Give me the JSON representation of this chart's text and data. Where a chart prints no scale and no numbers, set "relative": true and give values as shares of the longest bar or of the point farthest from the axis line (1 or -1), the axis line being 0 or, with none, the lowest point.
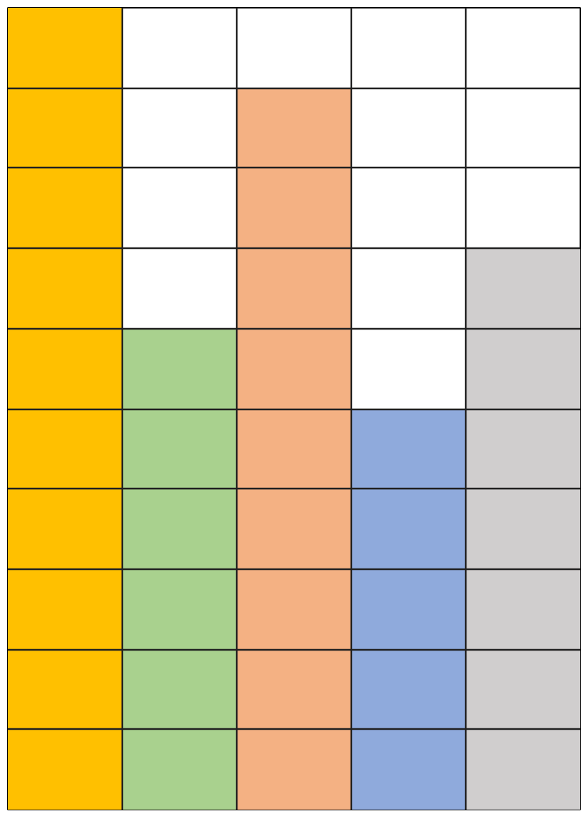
{
  "chart_data": {
    "type": "bar",
    "relative": true,
    "categories": [
      null,
      null,
      null,
      null,
      null
    ],
    "values": [
      1.0,
      0.6,
      0.9,
      0.5,
      0.7
    ],
    "colors": [
      "#ffc000",
      "#a9d18e",
      "#f4b183",
      "#8faadc",
      "#d0cece"
    ],
    "grid": true
  }
}
